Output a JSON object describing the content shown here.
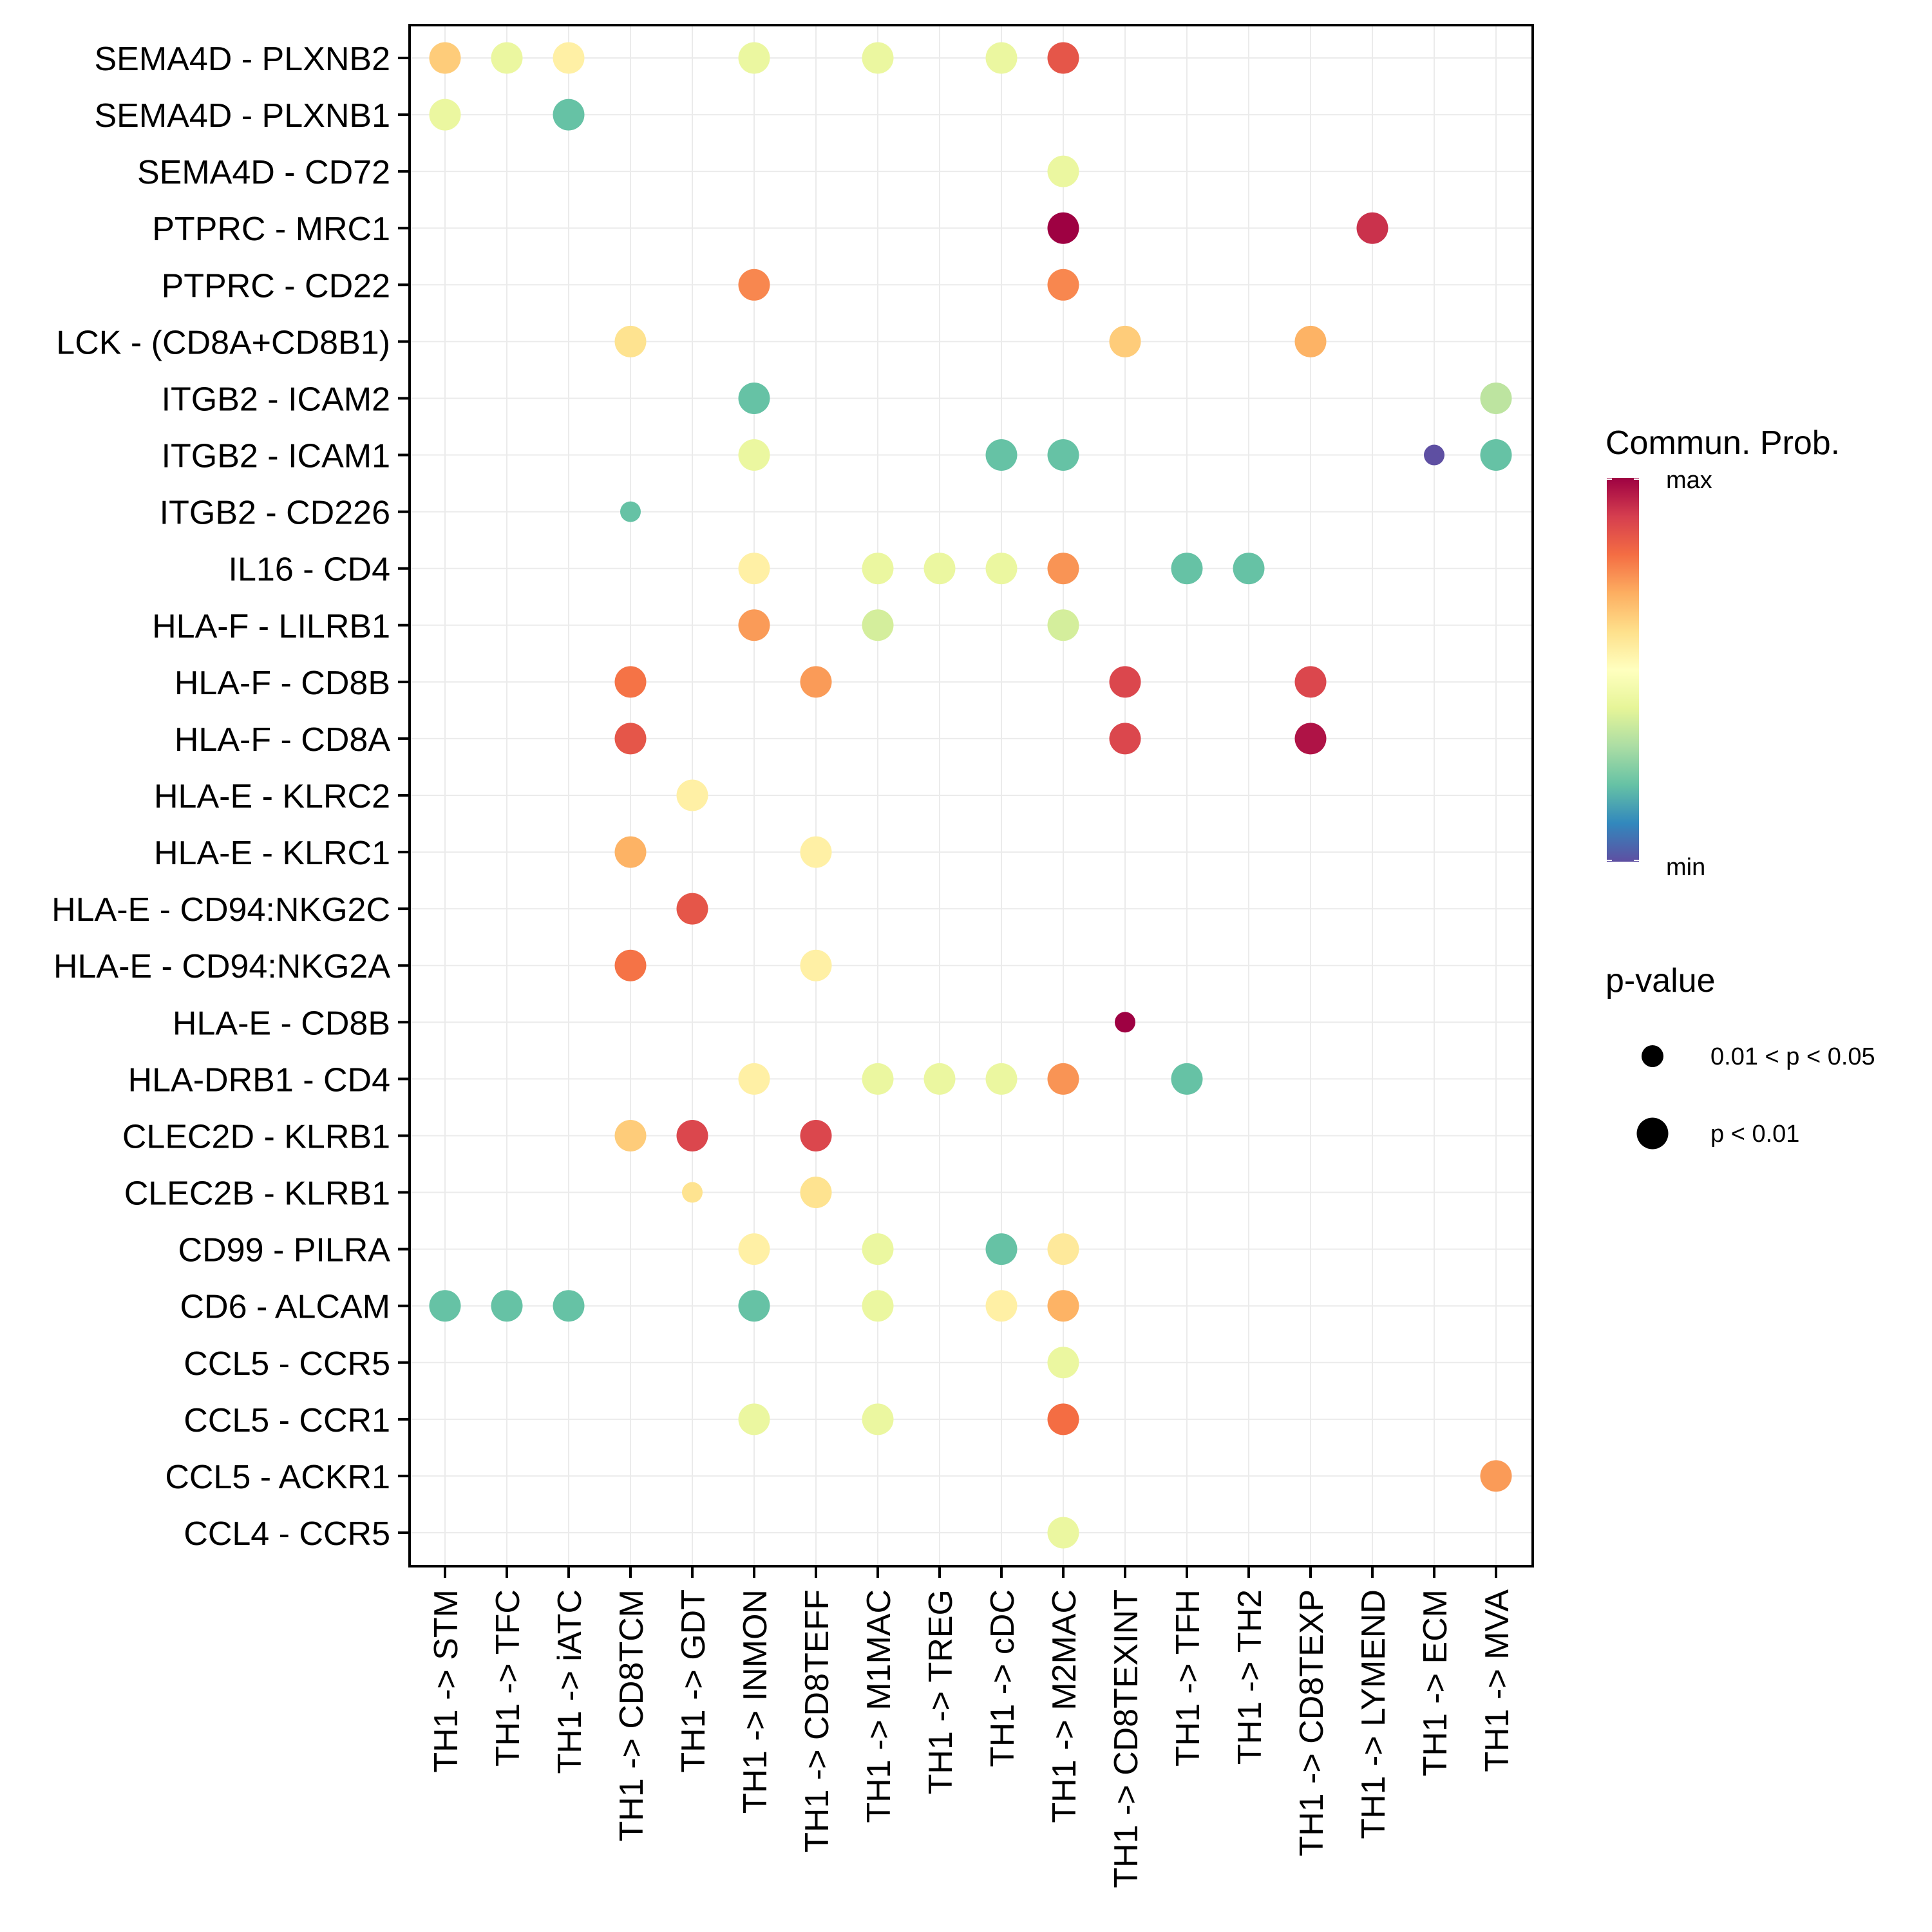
{
  "chart_data": {
    "type": "scatter",
    "subtype": "dot-matrix",
    "title": "",
    "xlabel": "",
    "ylabel": "",
    "grid": true,
    "x_categories": [
      "TH1 -> STM",
      "TH1 -> TFC",
      "TH1 -> iATC",
      "TH1 -> CD8TCM",
      "TH1 -> GDT",
      "TH1 -> INMON",
      "TH1 -> CD8TEFF",
      "TH1 -> M1MAC",
      "TH1 -> TREG",
      "TH1 -> cDC",
      "TH1 -> M2MAC",
      "TH1 -> CD8TEXINT",
      "TH1 -> TFH",
      "TH1 -> TH2",
      "TH1 -> CD8TEXP",
      "TH1 -> LYMEND",
      "TH1 -> ECM",
      "TH1 -> MVA"
    ],
    "y_categories": [
      "SEMA4D - PLXNB2",
      "SEMA4D - PLXNB1",
      "SEMA4D - CD72",
      "PTPRC - MRC1",
      "PTPRC - CD22",
      "LCK - (CD8A+CD8B1)",
      "ITGB2 - ICAM2",
      "ITGB2 - ICAM1",
      "ITGB2 - CD226",
      "IL16 - CD4",
      "HLA-F - LILRB1",
      "HLA-F - CD8B",
      "HLA-F - CD8A",
      "HLA-E - KLRC2",
      "HLA-E - KLRC1",
      "HLA-E - CD94:NKG2C",
      "HLA-E - CD94:NKG2A",
      "HLA-E - CD8B",
      "HLA-DRB1 - CD4",
      "CLEC2D - KLRB1",
      "CLEC2B - KLRB1",
      "CD99 - PILRA",
      "CD6 - ALCAM",
      "CCL5 - CCR5",
      "CCL5 - CCR1",
      "CCL5 - ACKR1",
      "CCL4 - CCR5"
    ],
    "color_scale": {
      "name": "Spectral",
      "label": "Commun. Prob.",
      "min_label": "min",
      "max_label": "max",
      "stops": [
        "#5E4FA2",
        "#3288BD",
        "#66C2A5",
        "#ABDDA4",
        "#E6F598",
        "#FFFFBF",
        "#FEE08B",
        "#FDAE61",
        "#F46D43",
        "#D53E4F",
        "#9E0142"
      ]
    },
    "size_legend": {
      "title": "p-value",
      "entries": [
        {
          "label": "0.01 < p < 0.05",
          "key": "p_0.05"
        },
        {
          "label": "p < 0.01",
          "key": "p_0.01"
        }
      ]
    },
    "points_note": "prob is commun. probability normalized 0 (min) to 1 (max), estimated from color; p is the p-value category",
    "points": [
      {
        "y": "SEMA4D - PLXNB2",
        "x": "TH1 -> STM",
        "prob": 0.64,
        "p": "p_0.01"
      },
      {
        "y": "SEMA4D - PLXNB2",
        "x": "TH1 -> TFC",
        "prob": 0.42,
        "p": "p_0.01"
      },
      {
        "y": "SEMA4D - PLXNB2",
        "x": "TH1 -> iATC",
        "prob": 0.55,
        "p": "p_0.01"
      },
      {
        "y": "SEMA4D - PLXNB2",
        "x": "TH1 -> INMON",
        "prob": 0.42,
        "p": "p_0.01"
      },
      {
        "y": "SEMA4D - PLXNB2",
        "x": "TH1 -> M1MAC",
        "prob": 0.42,
        "p": "p_0.01"
      },
      {
        "y": "SEMA4D - PLXNB2",
        "x": "TH1 -> cDC",
        "prob": 0.42,
        "p": "p_0.01"
      },
      {
        "y": "SEMA4D - PLXNB2",
        "x": "TH1 -> M2MAC",
        "prob": 0.85,
        "p": "p_0.01"
      },
      {
        "y": "SEMA4D - PLXNB1",
        "x": "TH1 -> STM",
        "prob": 0.42,
        "p": "p_0.01"
      },
      {
        "y": "SEMA4D - PLXNB1",
        "x": "TH1 -> iATC",
        "prob": 0.2,
        "p": "p_0.01"
      },
      {
        "y": "SEMA4D - CD72",
        "x": "TH1 -> M2MAC",
        "prob": 0.42,
        "p": "p_0.01"
      },
      {
        "y": "PTPRC - MRC1",
        "x": "TH1 -> M2MAC",
        "prob": 1.0,
        "p": "p_0.01"
      },
      {
        "y": "PTPRC - MRC1",
        "x": "TH1 -> LYMEND",
        "prob": 0.92,
        "p": "p_0.01"
      },
      {
        "y": "PTPRC - CD22",
        "x": "TH1 -> INMON",
        "prob": 0.76,
        "p": "p_0.01"
      },
      {
        "y": "PTPRC - CD22",
        "x": "TH1 -> M2MAC",
        "prob": 0.76,
        "p": "p_0.01"
      },
      {
        "y": "LCK - (CD8A+CD8B1)",
        "x": "TH1 -> CD8TCM",
        "prob": 0.59,
        "p": "p_0.01"
      },
      {
        "y": "LCK - (CD8A+CD8B1)",
        "x": "TH1 -> CD8TEXINT",
        "prob": 0.64,
        "p": "p_0.01"
      },
      {
        "y": "LCK - (CD8A+CD8B1)",
        "x": "TH1 -> CD8TEXP",
        "prob": 0.69,
        "p": "p_0.01"
      },
      {
        "y": "ITGB2 - ICAM2",
        "x": "TH1 -> INMON",
        "prob": 0.2,
        "p": "p_0.01"
      },
      {
        "y": "ITGB2 - ICAM2",
        "x": "TH1 -> MVA",
        "prob": 0.33,
        "p": "p_0.01"
      },
      {
        "y": "ITGB2 - ICAM1",
        "x": "TH1 -> INMON",
        "prob": 0.42,
        "p": "p_0.01"
      },
      {
        "y": "ITGB2 - ICAM1",
        "x": "TH1 -> cDC",
        "prob": 0.2,
        "p": "p_0.01"
      },
      {
        "y": "ITGB2 - ICAM1",
        "x": "TH1 -> M2MAC",
        "prob": 0.2,
        "p": "p_0.01"
      },
      {
        "y": "ITGB2 - ICAM1",
        "x": "TH1 -> ECM",
        "prob": 0.0,
        "p": "p_0.05"
      },
      {
        "y": "ITGB2 - ICAM1",
        "x": "TH1 -> MVA",
        "prob": 0.2,
        "p": "p_0.01"
      },
      {
        "y": "ITGB2 - CD226",
        "x": "TH1 -> CD8TCM",
        "prob": 0.2,
        "p": "p_0.05"
      },
      {
        "y": "IL16 - CD4",
        "x": "TH1 -> INMON",
        "prob": 0.55,
        "p": "p_0.01"
      },
      {
        "y": "IL16 - CD4",
        "x": "TH1 -> M1MAC",
        "prob": 0.42,
        "p": "p_0.01"
      },
      {
        "y": "IL16 - CD4",
        "x": "TH1 -> TREG",
        "prob": 0.42,
        "p": "p_0.01"
      },
      {
        "y": "IL16 - CD4",
        "x": "TH1 -> cDC",
        "prob": 0.42,
        "p": "p_0.01"
      },
      {
        "y": "IL16 - CD4",
        "x": "TH1 -> M2MAC",
        "prob": 0.74,
        "p": "p_0.01"
      },
      {
        "y": "IL16 - CD4",
        "x": "TH1 -> TFH",
        "prob": 0.2,
        "p": "p_0.01"
      },
      {
        "y": "IL16 - CD4",
        "x": "TH1 -> TH2",
        "prob": 0.2,
        "p": "p_0.01"
      },
      {
        "y": "HLA-F - LILRB1",
        "x": "TH1 -> INMON",
        "prob": 0.73,
        "p": "p_0.01"
      },
      {
        "y": "HLA-F - LILRB1",
        "x": "TH1 -> M1MAC",
        "prob": 0.37,
        "p": "p_0.01"
      },
      {
        "y": "HLA-F - LILRB1",
        "x": "TH1 -> M2MAC",
        "prob": 0.37,
        "p": "p_0.01"
      },
      {
        "y": "HLA-F - CD8B",
        "x": "TH1 -> CD8TCM",
        "prob": 0.79,
        "p": "p_0.01"
      },
      {
        "y": "HLA-F - CD8B",
        "x": "TH1 -> CD8TEFF",
        "prob": 0.73,
        "p": "p_0.01"
      },
      {
        "y": "HLA-F - CD8B",
        "x": "TH1 -> CD8TEXINT",
        "prob": 0.88,
        "p": "p_0.01"
      },
      {
        "y": "HLA-F - CD8B",
        "x": "TH1 -> CD8TEXP",
        "prob": 0.88,
        "p": "p_0.01"
      },
      {
        "y": "HLA-F - CD8A",
        "x": "TH1 -> CD8TCM",
        "prob": 0.85,
        "p": "p_0.01"
      },
      {
        "y": "HLA-F - CD8A",
        "x": "TH1 -> CD8TEXINT",
        "prob": 0.88,
        "p": "p_0.01"
      },
      {
        "y": "HLA-F - CD8A",
        "x": "TH1 -> CD8TEXP",
        "prob": 0.97,
        "p": "p_0.01"
      },
      {
        "y": "HLA-E - KLRC2",
        "x": "TH1 -> GDT",
        "prob": 0.55,
        "p": "p_0.01"
      },
      {
        "y": "HLA-E - KLRC1",
        "x": "TH1 -> CD8TCM",
        "prob": 0.69,
        "p": "p_0.01"
      },
      {
        "y": "HLA-E - KLRC1",
        "x": "TH1 -> CD8TEFF",
        "prob": 0.55,
        "p": "p_0.01"
      },
      {
        "y": "HLA-E - CD94:NKG2C",
        "x": "TH1 -> GDT",
        "prob": 0.85,
        "p": "p_0.01"
      },
      {
        "y": "HLA-E - CD94:NKG2A",
        "x": "TH1 -> CD8TCM",
        "prob": 0.79,
        "p": "p_0.01"
      },
      {
        "y": "HLA-E - CD94:NKG2A",
        "x": "TH1 -> CD8TEFF",
        "prob": 0.55,
        "p": "p_0.01"
      },
      {
        "y": "HLA-E - CD8B",
        "x": "TH1 -> CD8TEXINT",
        "prob": 1.0,
        "p": "p_0.05"
      },
      {
        "y": "HLA-DRB1 - CD4",
        "x": "TH1 -> INMON",
        "prob": 0.55,
        "p": "p_0.01"
      },
      {
        "y": "HLA-DRB1 - CD4",
        "x": "TH1 -> M1MAC",
        "prob": 0.42,
        "p": "p_0.01"
      },
      {
        "y": "HLA-DRB1 - CD4",
        "x": "TH1 -> TREG",
        "prob": 0.42,
        "p": "p_0.01"
      },
      {
        "y": "HLA-DRB1 - CD4",
        "x": "TH1 -> cDC",
        "prob": 0.42,
        "p": "p_0.01"
      },
      {
        "y": "HLA-DRB1 - CD4",
        "x": "TH1 -> M2MAC",
        "prob": 0.74,
        "p": "p_0.01"
      },
      {
        "y": "HLA-DRB1 - CD4",
        "x": "TH1 -> TFH",
        "prob": 0.2,
        "p": "p_0.01"
      },
      {
        "y": "CLEC2D - KLRB1",
        "x": "TH1 -> CD8TCM",
        "prob": 0.64,
        "p": "p_0.01"
      },
      {
        "y": "CLEC2D - KLRB1",
        "x": "TH1 -> GDT",
        "prob": 0.88,
        "p": "p_0.01"
      },
      {
        "y": "CLEC2D - KLRB1",
        "x": "TH1 -> CD8TEFF",
        "prob": 0.88,
        "p": "p_0.01"
      },
      {
        "y": "CLEC2B - KLRB1",
        "x": "TH1 -> GDT",
        "prob": 0.59,
        "p": "p_0.05"
      },
      {
        "y": "CLEC2B - KLRB1",
        "x": "TH1 -> CD8TEFF",
        "prob": 0.59,
        "p": "p_0.01"
      },
      {
        "y": "CD99 - PILRA",
        "x": "TH1 -> INMON",
        "prob": 0.55,
        "p": "p_0.01"
      },
      {
        "y": "CD99 - PILRA",
        "x": "TH1 -> M1MAC",
        "prob": 0.42,
        "p": "p_0.01"
      },
      {
        "y": "CD99 - PILRA",
        "x": "TH1 -> cDC",
        "prob": 0.2,
        "p": "p_0.01"
      },
      {
        "y": "CD99 - PILRA",
        "x": "TH1 -> M2MAC",
        "prob": 0.57,
        "p": "p_0.01"
      },
      {
        "y": "CD6 - ALCAM",
        "x": "TH1 -> STM",
        "prob": 0.2,
        "p": "p_0.01"
      },
      {
        "y": "CD6 - ALCAM",
        "x": "TH1 -> TFC",
        "prob": 0.2,
        "p": "p_0.01"
      },
      {
        "y": "CD6 - ALCAM",
        "x": "TH1 -> iATC",
        "prob": 0.2,
        "p": "p_0.01"
      },
      {
        "y": "CD6 - ALCAM",
        "x": "TH1 -> INMON",
        "prob": 0.2,
        "p": "p_0.01"
      },
      {
        "y": "CD6 - ALCAM",
        "x": "TH1 -> M1MAC",
        "prob": 0.42,
        "p": "p_0.01"
      },
      {
        "y": "CD6 - ALCAM",
        "x": "TH1 -> cDC",
        "prob": 0.55,
        "p": "p_0.01"
      },
      {
        "y": "CD6 - ALCAM",
        "x": "TH1 -> M2MAC",
        "prob": 0.69,
        "p": "p_0.01"
      },
      {
        "y": "CCL5 - CCR5",
        "x": "TH1 -> M2MAC",
        "prob": 0.42,
        "p": "p_0.01"
      },
      {
        "y": "CCL5 - CCR1",
        "x": "TH1 -> INMON",
        "prob": 0.42,
        "p": "p_0.01"
      },
      {
        "y": "CCL5 - CCR1",
        "x": "TH1 -> M1MAC",
        "prob": 0.42,
        "p": "p_0.01"
      },
      {
        "y": "CCL5 - CCR1",
        "x": "TH1 -> M2MAC",
        "prob": 0.8,
        "p": "p_0.01"
      },
      {
        "y": "CCL5 - ACKR1",
        "x": "TH1 -> MVA",
        "prob": 0.73,
        "p": "p_0.01"
      },
      {
        "y": "CCL4 - CCR5",
        "x": "TH1 -> M2MAC",
        "prob": 0.42,
        "p": "p_0.01"
      }
    ]
  }
}
